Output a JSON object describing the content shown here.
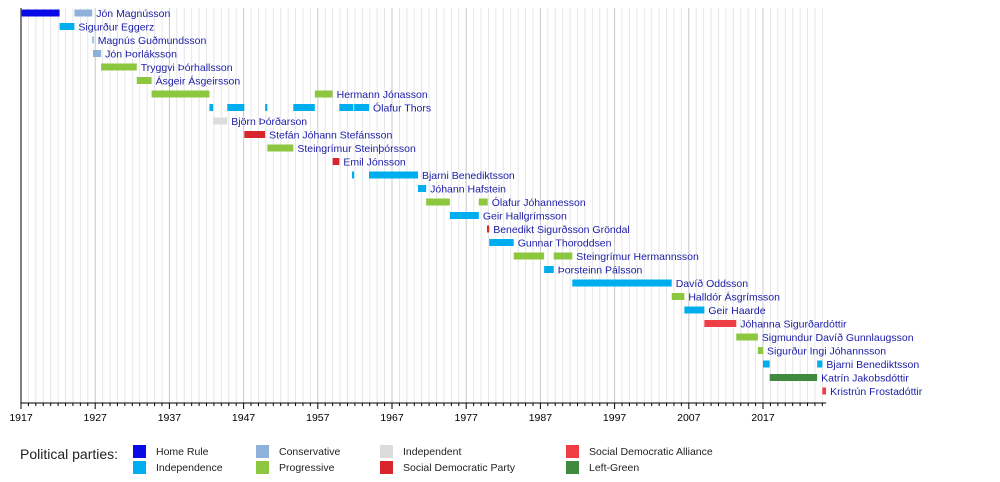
{
  "chart_data": {
    "type": "timeline",
    "title": "",
    "x_axis": {
      "min": 1917,
      "max": 2025.5,
      "ticks": [
        "1917",
        "1927",
        "1937",
        "1947",
        "1957",
        "1967",
        "1977",
        "1987",
        "1997",
        "2007",
        "2017"
      ],
      "minor_step": 1
    },
    "grid": true,
    "legend_title": "Political parties:",
    "legend_placement": "bottom",
    "parties": [
      {
        "key": "home_rule",
        "name": "Home Rule",
        "color": "#0a0ae6"
      },
      {
        "key": "independence",
        "name": "Independence",
        "color": "#00aeef"
      },
      {
        "key": "conservative",
        "name": "Conservative",
        "color": "#8eb1d9"
      },
      {
        "key": "progressive",
        "name": "Progressive",
        "color": "#8dc63f"
      },
      {
        "key": "independent",
        "name": "Independent",
        "color": "#dcdcdc"
      },
      {
        "key": "sdp",
        "name": "Social Democratic Party",
        "color": "#d7262d"
      },
      {
        "key": "sda",
        "name": "Social Democratic Alliance",
        "color": "#ef3e46"
      },
      {
        "key": "left_green",
        "name": "Left-Green",
        "color": "#3f8a3e"
      }
    ],
    "rows": [
      {
        "name": "Jón Magnússon",
        "terms": [
          [
            1917.1,
            1922.2,
            "home_rule"
          ],
          [
            1924.2,
            1926.6,
            "conservative"
          ]
        ]
      },
      {
        "name": "Sigurður Eggerz",
        "terms": [
          [
            1922.2,
            1924.2,
            "independence"
          ]
        ]
      },
      {
        "name": "Magnús Guðmundsson",
        "terms": [
          [
            1926.6,
            1926.7,
            "conservative"
          ]
        ]
      },
      {
        "name": "Jón Þorláksson",
        "terms": [
          [
            1926.7,
            1927.8,
            "conservative"
          ]
        ]
      },
      {
        "name": "Tryggvi Þórhallsson",
        "terms": [
          [
            1927.8,
            1932.6,
            "progressive"
          ]
        ]
      },
      {
        "name": "Ásgeir Ásgeirsson",
        "terms": [
          [
            1932.6,
            1934.6,
            "progressive"
          ]
        ]
      },
      {
        "name": "Hermann Jónasson",
        "terms": [
          [
            1934.6,
            1942.4,
            "progressive"
          ],
          [
            1956.6,
            1959.0,
            "progressive"
          ]
        ]
      },
      {
        "name": "Ólafur Thors",
        "terms": [
          [
            1942.4,
            1942.9,
            "independence"
          ],
          [
            1944.8,
            1947.1,
            "independence"
          ],
          [
            1949.9,
            1950.2,
            "independence"
          ],
          [
            1953.7,
            1956.6,
            "independence"
          ],
          [
            1959.9,
            1961.8,
            "independence"
          ],
          [
            1961.9,
            1963.9,
            "independence"
          ]
        ]
      },
      {
        "name": "Björn Þórðarson",
        "terms": [
          [
            1942.9,
            1944.8,
            "independent"
          ]
        ]
      },
      {
        "name": "Stefán Jóhann Stefánsson",
        "terms": [
          [
            1947.1,
            1949.9,
            "sdp"
          ]
        ]
      },
      {
        "name": "Steingrímur Steinþórsson",
        "terms": [
          [
            1950.2,
            1953.7,
            "progressive"
          ]
        ]
      },
      {
        "name": "Emil Jónsson",
        "terms": [
          [
            1959.0,
            1959.9,
            "sdp"
          ]
        ]
      },
      {
        "name": "Bjarni Benediktsson",
        "terms": [
          [
            1961.6,
            1961.9,
            "independence"
          ],
          [
            1963.9,
            1970.5,
            "independence"
          ]
        ]
      },
      {
        "name": "Jóhann Hafstein",
        "terms": [
          [
            1970.5,
            1971.6,
            "independence"
          ]
        ]
      },
      {
        "name": "Ólafur Jóhannesson",
        "terms": [
          [
            1971.6,
            1974.8,
            "progressive"
          ],
          [
            1978.7,
            1979.9,
            "progressive"
          ]
        ]
      },
      {
        "name": "Geir Hallgrímsson",
        "terms": [
          [
            1974.8,
            1978.7,
            "independence"
          ]
        ]
      },
      {
        "name": "Benedikt Sigurðsson Gröndal",
        "terms": [
          [
            1979.8,
            1980.1,
            "sdp"
          ]
        ]
      },
      {
        "name": "Gunnar Thoroddsen",
        "terms": [
          [
            1980.1,
            1983.4,
            "independence"
          ]
        ]
      },
      {
        "name": "Steingrímur Hermannsson",
        "terms": [
          [
            1983.4,
            1987.5,
            "progressive"
          ],
          [
            1988.8,
            1991.3,
            "progressive"
          ]
        ]
      },
      {
        "name": "Þorsteinn Pálsson",
        "terms": [
          [
            1987.5,
            1988.8,
            "independence"
          ]
        ]
      },
      {
        "name": "Davíð Oddsson",
        "terms": [
          [
            1991.3,
            2004.7,
            "independence"
          ]
        ]
      },
      {
        "name": "Halldór Ásgrímsson",
        "terms": [
          [
            2004.7,
            2006.4,
            "progressive"
          ]
        ]
      },
      {
        "name": "Geir Haarde",
        "terms": [
          [
            2006.4,
            2009.1,
            "independence"
          ]
        ]
      },
      {
        "name": "Jóhanna Sigurðardóttir",
        "terms": [
          [
            2009.1,
            2013.4,
            "sda"
          ]
        ]
      },
      {
        "name": "Sigmundur Davíð Gunnlaugsson",
        "terms": [
          [
            2013.4,
            2016.3,
            "progressive"
          ]
        ]
      },
      {
        "name": "Sigurður Ingi Jóhannsson",
        "terms": [
          [
            2016.3,
            2017.0,
            "progressive"
          ]
        ]
      },
      {
        "name": "Bjarni Benediktsson",
        "terms": [
          [
            2017.0,
            2017.9,
            "independence"
          ],
          [
            2024.3,
            2025.0,
            "independence"
          ]
        ]
      },
      {
        "name": "Katrín Jakobsdóttir",
        "terms": [
          [
            2017.9,
            2024.3,
            "left_green"
          ]
        ]
      },
      {
        "name": "Kristrún Frostadóttir",
        "terms": [
          [
            2025.0,
            2025.5,
            "sda"
          ]
        ]
      }
    ]
  }
}
